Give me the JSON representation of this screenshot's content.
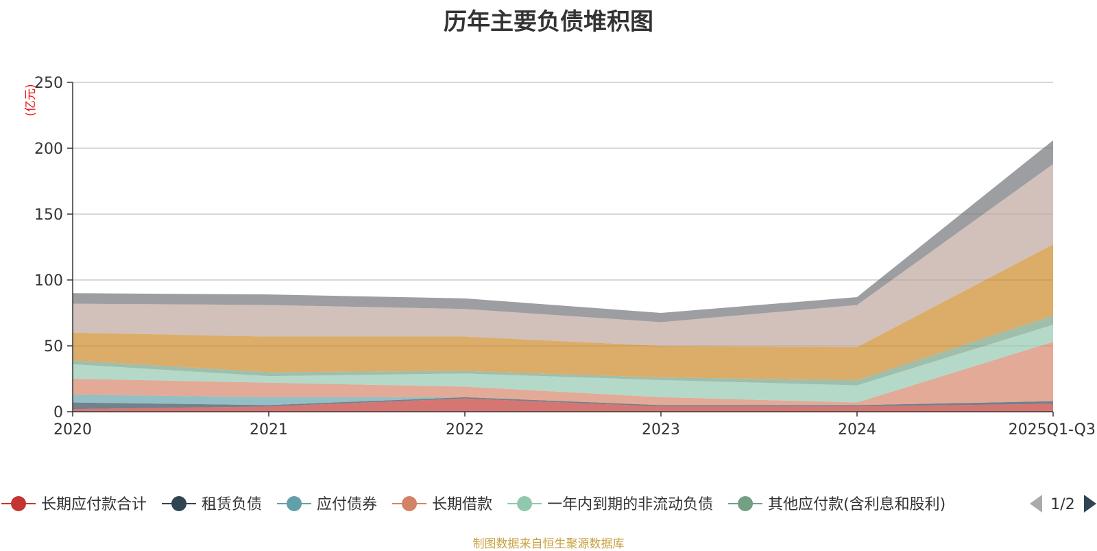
{
  "chart_data": {
    "type": "area",
    "stacked": true,
    "title": "历年主要负债堆积图",
    "unit_label": "(亿元)",
    "x": [
      "2020",
      "2021",
      "2022",
      "2023",
      "2024",
      "2025Q1-Q3"
    ],
    "ylim": [
      0,
      250
    ],
    "yticks": [
      0,
      50,
      100,
      150,
      200,
      250
    ],
    "grid": true,
    "series": [
      {
        "name": "长期应付款合计",
        "color": "#c23531",
        "values": [
          2,
          4,
          10,
          4,
          4,
          6
        ]
      },
      {
        "name": "租赁负债",
        "color": "#2f4554",
        "values": [
          5,
          1,
          1,
          1,
          1,
          2
        ]
      },
      {
        "name": "应付债券",
        "color": "#61a0a8",
        "values": [
          6,
          6,
          0,
          0,
          0,
          0
        ]
      },
      {
        "name": "长期借款",
        "color": "#d48265",
        "values": [
          12,
          11,
          8,
          6,
          2,
          45
        ]
      },
      {
        "name": "一年内到期的非流动负债",
        "color": "#91c7ae",
        "values": [
          11,
          5,
          10,
          13,
          13,
          13
        ]
      },
      {
        "name": "其他应付款(含利息和股利)",
        "color": "#749f83",
        "values": [
          3,
          3,
          2,
          2,
          4,
          7
        ]
      },
      {
        "name": "",
        "color": "#ca8622",
        "values": [
          21,
          27,
          26,
          24,
          25,
          54
        ]
      },
      {
        "name": "",
        "color": "#bda29a",
        "values": [
          22,
          24,
          21,
          18,
          32,
          61
        ]
      },
      {
        "name": "",
        "color": "#6e7074",
        "values": [
          8,
          8,
          8,
          7,
          6,
          18
        ]
      }
    ],
    "legend": {
      "placement": "bottom",
      "page": "1/2"
    }
  },
  "source_note": "制图数据来自恒生聚源数据库"
}
